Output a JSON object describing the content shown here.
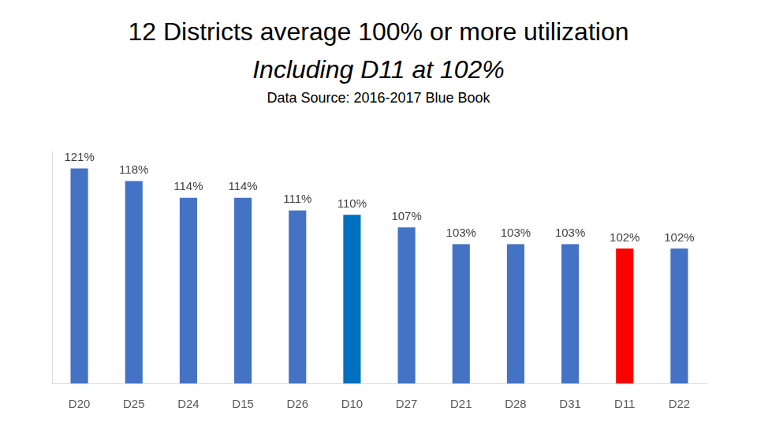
{
  "chart_data": {
    "type": "bar",
    "title": "12 Districts average 100% or more utilization",
    "subtitle": "Including D11 at 102%",
    "source": "Data Source: 2016-2017 Blue Book",
    "categories": [
      "D20",
      "D25",
      "D24",
      "D15",
      "D26",
      "D10",
      "D27",
      "D21",
      "D28",
      "D31",
      "D11",
      "D22"
    ],
    "values": [
      121,
      118,
      114,
      114,
      111,
      110,
      107,
      103,
      103,
      103,
      102,
      102
    ],
    "value_labels": [
      "121%",
      "118%",
      "114%",
      "114%",
      "111%",
      "110%",
      "107%",
      "103%",
      "103%",
      "103%",
      "102%",
      "102%"
    ],
    "colors": [
      "#4472c4",
      "#4472c4",
      "#4472c4",
      "#4472c4",
      "#4472c4",
      "#0070c0",
      "#4472c4",
      "#4472c4",
      "#4472c4",
      "#4472c4",
      "#ff0000",
      "#4472c4"
    ],
    "ylim": [
      70,
      125
    ],
    "grid": false,
    "data_labels": true,
    "tick_labels": "x"
  }
}
